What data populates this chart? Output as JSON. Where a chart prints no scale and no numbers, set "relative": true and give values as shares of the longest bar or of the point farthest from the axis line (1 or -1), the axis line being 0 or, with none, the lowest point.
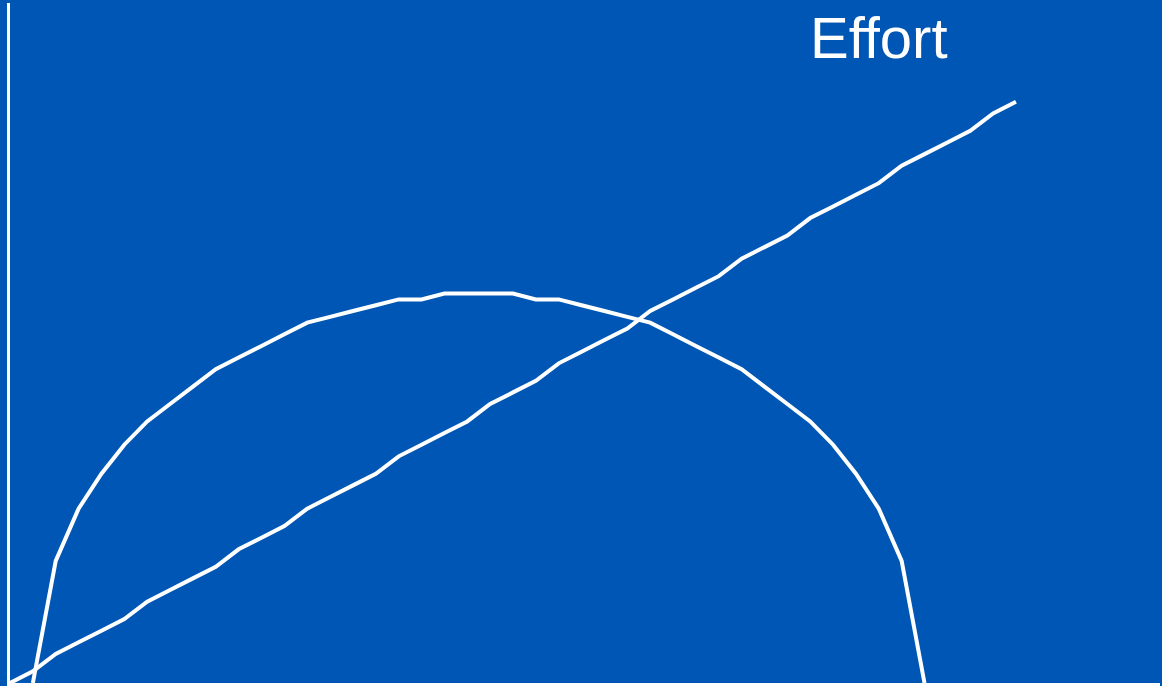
{
  "chart_data": {
    "type": "line",
    "relative": true,
    "grid": false,
    "legend": false,
    "marker": "none",
    "line_style": "solid",
    "categories": [
      null,
      null,
      null,
      null,
      null,
      null,
      null,
      null,
      null,
      null,
      null,
      null,
      null,
      null,
      null,
      null,
      null,
      null,
      null,
      null,
      null,
      null,
      null,
      null,
      null,
      null,
      null,
      null,
      null,
      null,
      null,
      null,
      null,
      null,
      null,
      null,
      null,
      null,
      null,
      null,
      null,
      null,
      null,
      null,
      null,
      null,
      null,
      null,
      null,
      null,
      null
    ],
    "series": [
      {
        "color": "#ffffff",
        "values": [
          null,
          0,
          0.21,
          0.3,
          0.36,
          0.41,
          0.45,
          0.48,
          0.51,
          0.54,
          0.56,
          0.58,
          0.6,
          0.62,
          0.63,
          0.64,
          0.65,
          0.66,
          0.66,
          0.67,
          0.67,
          0.67,
          0.67,
          0.66,
          0.66,
          0.65,
          0.64,
          0.63,
          0.62,
          0.6,
          0.58,
          0.56,
          0.54,
          0.51,
          0.48,
          0.45,
          0.41,
          0.36,
          0.3,
          0.21,
          0,
          null,
          null,
          null,
          null,
          null,
          null,
          null,
          null,
          null,
          null
        ]
      },
      {
        "name": "Effort",
        "color": "#ffffff",
        "values": [
          0,
          0.02,
          0.05,
          0.07,
          0.09,
          0.11,
          0.14,
          0.16,
          0.18,
          0.2,
          0.23,
          0.25,
          0.27,
          0.3,
          0.32,
          0.34,
          0.36,
          0.39,
          0.41,
          0.43,
          0.45,
          0.48,
          0.5,
          0.52,
          0.55,
          0.57,
          0.59,
          0.61,
          0.64,
          0.66,
          0.68,
          0.7,
          0.73,
          0.75,
          0.77,
          0.8,
          0.82,
          0.84,
          0.86,
          0.89,
          0.91,
          0.93,
          0.95,
          0.98,
          1,
          null,
          null,
          null,
          null,
          null,
          null
        ]
      }
    ]
  }
}
